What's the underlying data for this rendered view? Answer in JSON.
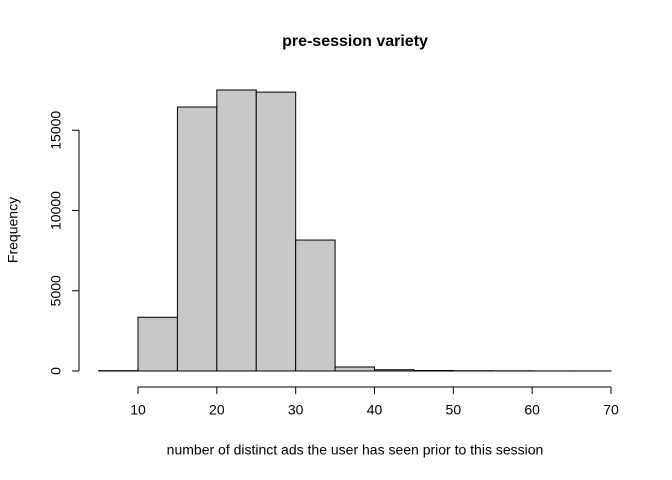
{
  "chart_data": {
    "type": "histogram",
    "title": "pre-session variety",
    "x_label": "number of distinct ads the user has seen prior to this session",
    "y_label": "Frequency",
    "bins": [
      5,
      10,
      15,
      20,
      25,
      30,
      35,
      40,
      45,
      50,
      55,
      60,
      65,
      70
    ],
    "counts": [
      20,
      3350,
      16450,
      17510,
      17380,
      8160,
      250,
      80,
      30,
      15,
      10,
      5,
      5
    ],
    "color": "#c8c8c8",
    "xlim": [
      5,
      70
    ],
    "xticks": [
      10,
      20,
      30,
      40,
      50,
      60,
      70
    ],
    "ylim": [
      0,
      17510
    ],
    "yticks": [
      0,
      5000,
      10000,
      15000
    ]
  }
}
